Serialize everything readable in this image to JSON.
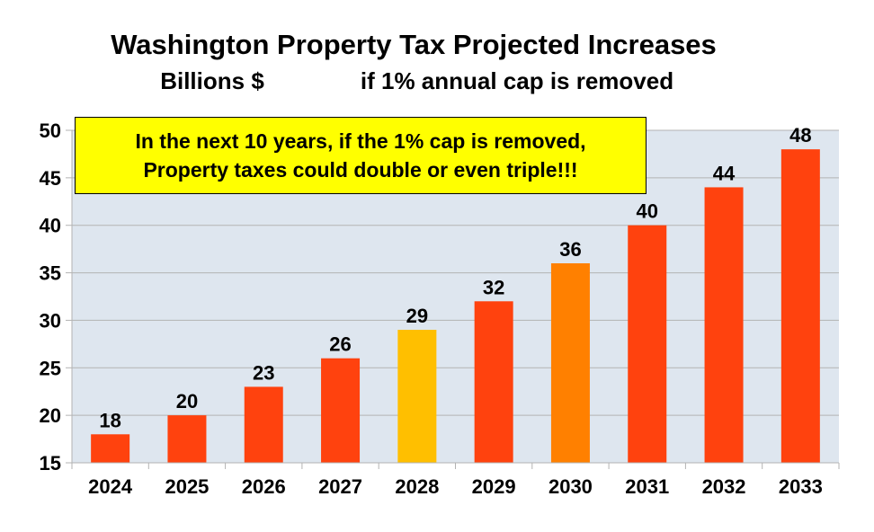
{
  "chart_data": {
    "type": "bar",
    "title": "Washington Property Tax Projected Increases",
    "subtitle_left": "Billions $",
    "subtitle_right": "if 1% annual cap is removed",
    "xlabel": "",
    "ylabel": "",
    "ylim": [
      15,
      50
    ],
    "yticks": [
      15,
      20,
      25,
      30,
      35,
      40,
      45,
      50
    ],
    "grid": true,
    "categories": [
      "2024",
      "2025",
      "2026",
      "2027",
      "2028",
      "2029",
      "2030",
      "2031",
      "2032",
      "2033"
    ],
    "values": [
      18,
      20,
      23,
      26,
      29,
      32,
      36,
      40,
      44,
      48
    ],
    "bar_colors": [
      "#ff420e",
      "#ff420e",
      "#ff420e",
      "#ff420e",
      "#ffbf00",
      "#ff420e",
      "#ff8000",
      "#ff420e",
      "#ff420e",
      "#ff420e"
    ],
    "annotation": {
      "line1": "In the next 10 years, if the 1% cap is removed,",
      "line2": "Property taxes could double or even triple!!!"
    }
  },
  "colors": {
    "plot_background": "#dee6ef",
    "gridline": "#b3b3b3",
    "annotation_background": "#ffff00"
  }
}
